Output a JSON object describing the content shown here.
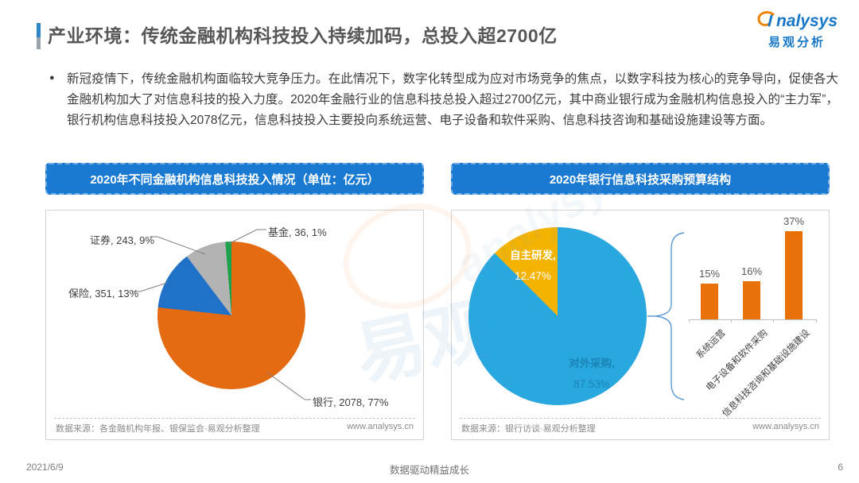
{
  "colors": {
    "header_blue": "#1a7ad2",
    "logo_blue": "#1878c8",
    "logo_orange": "#f08300",
    "accent_bar_blue": "#2e86c8",
    "accent_bar_gray": "#9aa3ab",
    "title_gray": "#575757",
    "bar_orange": "#e8710a",
    "bracket_blue": "#5b9bd5"
  },
  "header": {
    "title": "产业环境：传统金融机构科技投入持续加码，总投入超2700亿",
    "logo_en": "nalysys",
    "logo_cn": "易观分析"
  },
  "intro": {
    "bullet": "●",
    "text": "新冠疫情下，传统金融机构面临较大竞争压力。在此情况下，数字化转型成为应对市场竞争的焦点，以数字科技为核心的竞争导向，促使各大金融机构加大了对信息科技的投入力度。2020年金融行业的信息科技总投入超过2700亿元，其中商业银行成为金融机构信息投入的“主力军”， 银行机构信息科技投入2078亿元，信息科技投入主要投向系统运营、电子设备和软件采购、信息科技咨询和基础设施建设等方面。"
  },
  "panels": {
    "left": {
      "header": "2020年不同金融机构信息科技投入情况（单位：亿元）",
      "source": "数据来源：各金融机构年报、银保监会·易观分析整理",
      "site": "www.analysys.cn"
    },
    "right": {
      "header": "2020年银行信息科技采购预算结构",
      "source": "数据来源：银行访谈·易观分析整理",
      "site": "www.analysys.cn"
    }
  },
  "chart_data": [
    {
      "type": "pie",
      "title": "2020年不同金融机构信息科技投入情况（单位：亿元）",
      "unit": "亿元",
      "start_angle": 0,
      "direction": "clockwise",
      "slices": [
        {
          "name": "银行",
          "value": 2078,
          "pct": "77%",
          "color": "#e56b13",
          "label": "银行, 2078, 77%"
        },
        {
          "name": "保险",
          "value": 351,
          "pct": "13%",
          "color": "#1f72c8",
          "label": "保险, 351, 13%"
        },
        {
          "name": "证券",
          "value": 243,
          "pct": "9%",
          "color": "#b3b3b3",
          "label": "证券, 243, 9%"
        },
        {
          "name": "基金",
          "value": 36,
          "pct": "1%",
          "color": "#1ca24d",
          "label": "基金, 36, 1%"
        }
      ]
    },
    {
      "type": "pie",
      "title": "2020年银行信息科技采购预算结构",
      "start_angle": 0,
      "direction": "clockwise",
      "slices": [
        {
          "name": "对外采购",
          "value": 87.53,
          "color": "#29a8e0",
          "label": "对外采购,",
          "pct_label": "87.53%"
        },
        {
          "name": "自主研发",
          "value": 12.47,
          "color": "#f5b301",
          "label": "自主研发,",
          "pct_label": "12.47%"
        }
      ]
    },
    {
      "type": "bar",
      "title": "2020年银行信息科技采购预算结构（对外采购明细）",
      "categories": [
        "系统运营",
        "电子设备和软件采购",
        "信息科技咨询和基础设施建设"
      ],
      "values": [
        15,
        16,
        37
      ],
      "labels": [
        "15%",
        "16%",
        "37%"
      ],
      "unit": "%",
      "bar_color": "#e8710a",
      "ylim": [
        0,
        40
      ],
      "grid": false,
      "legend": "none"
    }
  ],
  "footer": {
    "date": "2021/6/9",
    "slogan": "数据驱动精益成长",
    "page": "6"
  }
}
